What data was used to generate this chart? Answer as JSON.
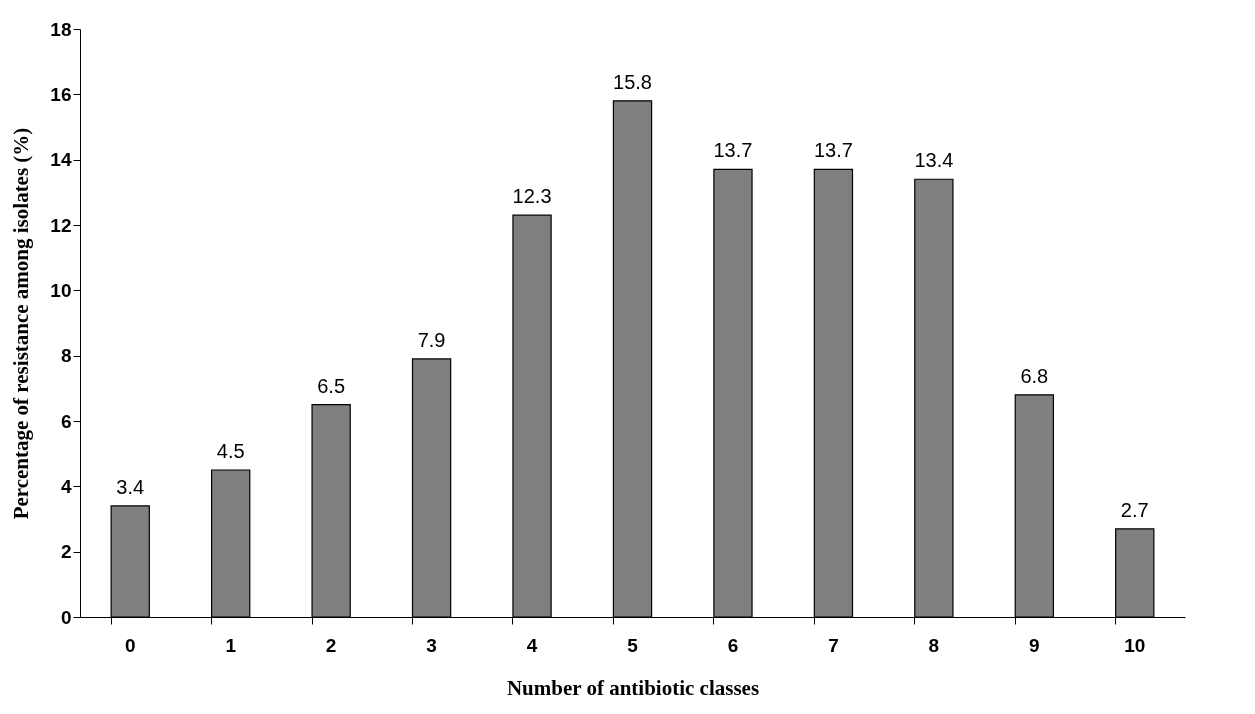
{
  "chart_data": {
    "type": "bar",
    "xlabel": "Number of antibiotic classes",
    "ylabel": "Percentage of resistance among isolates (%)",
    "categories": [
      "0",
      "1",
      "2",
      "3",
      "4",
      "5",
      "6",
      "7",
      "8",
      "9",
      "10"
    ],
    "values": [
      3.4,
      4.5,
      6.5,
      7.9,
      12.3,
      15.8,
      13.7,
      13.7,
      13.4,
      6.8,
      2.7
    ],
    "color": "#7f7f7f",
    "ylim": [
      0,
      18
    ],
    "yticks": [
      0,
      2,
      4,
      6,
      8,
      10,
      12,
      14,
      16,
      18
    ],
    "grid": false,
    "data_labels": true
  }
}
